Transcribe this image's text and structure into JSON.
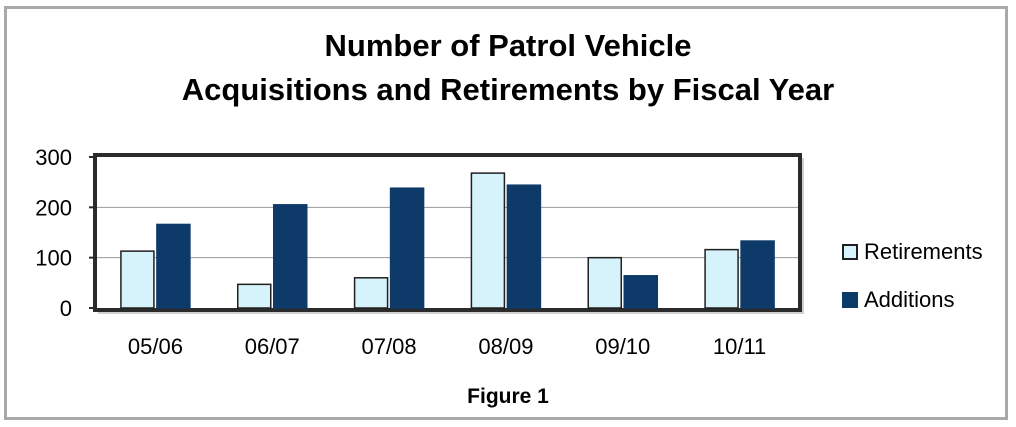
{
  "chart_data": {
    "type": "bar",
    "title_line1": "Number of Patrol Vehicle",
    "title_line2": "Acquisitions and Retirements by Fiscal Year",
    "caption": "Figure 1",
    "xlabel": "",
    "ylabel": "",
    "categories": [
      "05/06",
      "06/07",
      "07/08",
      "08/09",
      "09/10",
      "10/11"
    ],
    "series": [
      {
        "name": "Retirements",
        "values": [
          113,
          47,
          60,
          268,
          100,
          116
        ],
        "color": "#d6f3fc",
        "stroke": "#1f1f1f"
      },
      {
        "name": "Additions",
        "values": [
          166,
          205,
          238,
          244,
          64,
          133
        ],
        "color": "#0e3a69",
        "stroke": "#0e3a69"
      }
    ],
    "ylim": [
      0,
      300
    ],
    "yticks": [
      0,
      100,
      200,
      300
    ],
    "grid": true,
    "legend": "right"
  }
}
